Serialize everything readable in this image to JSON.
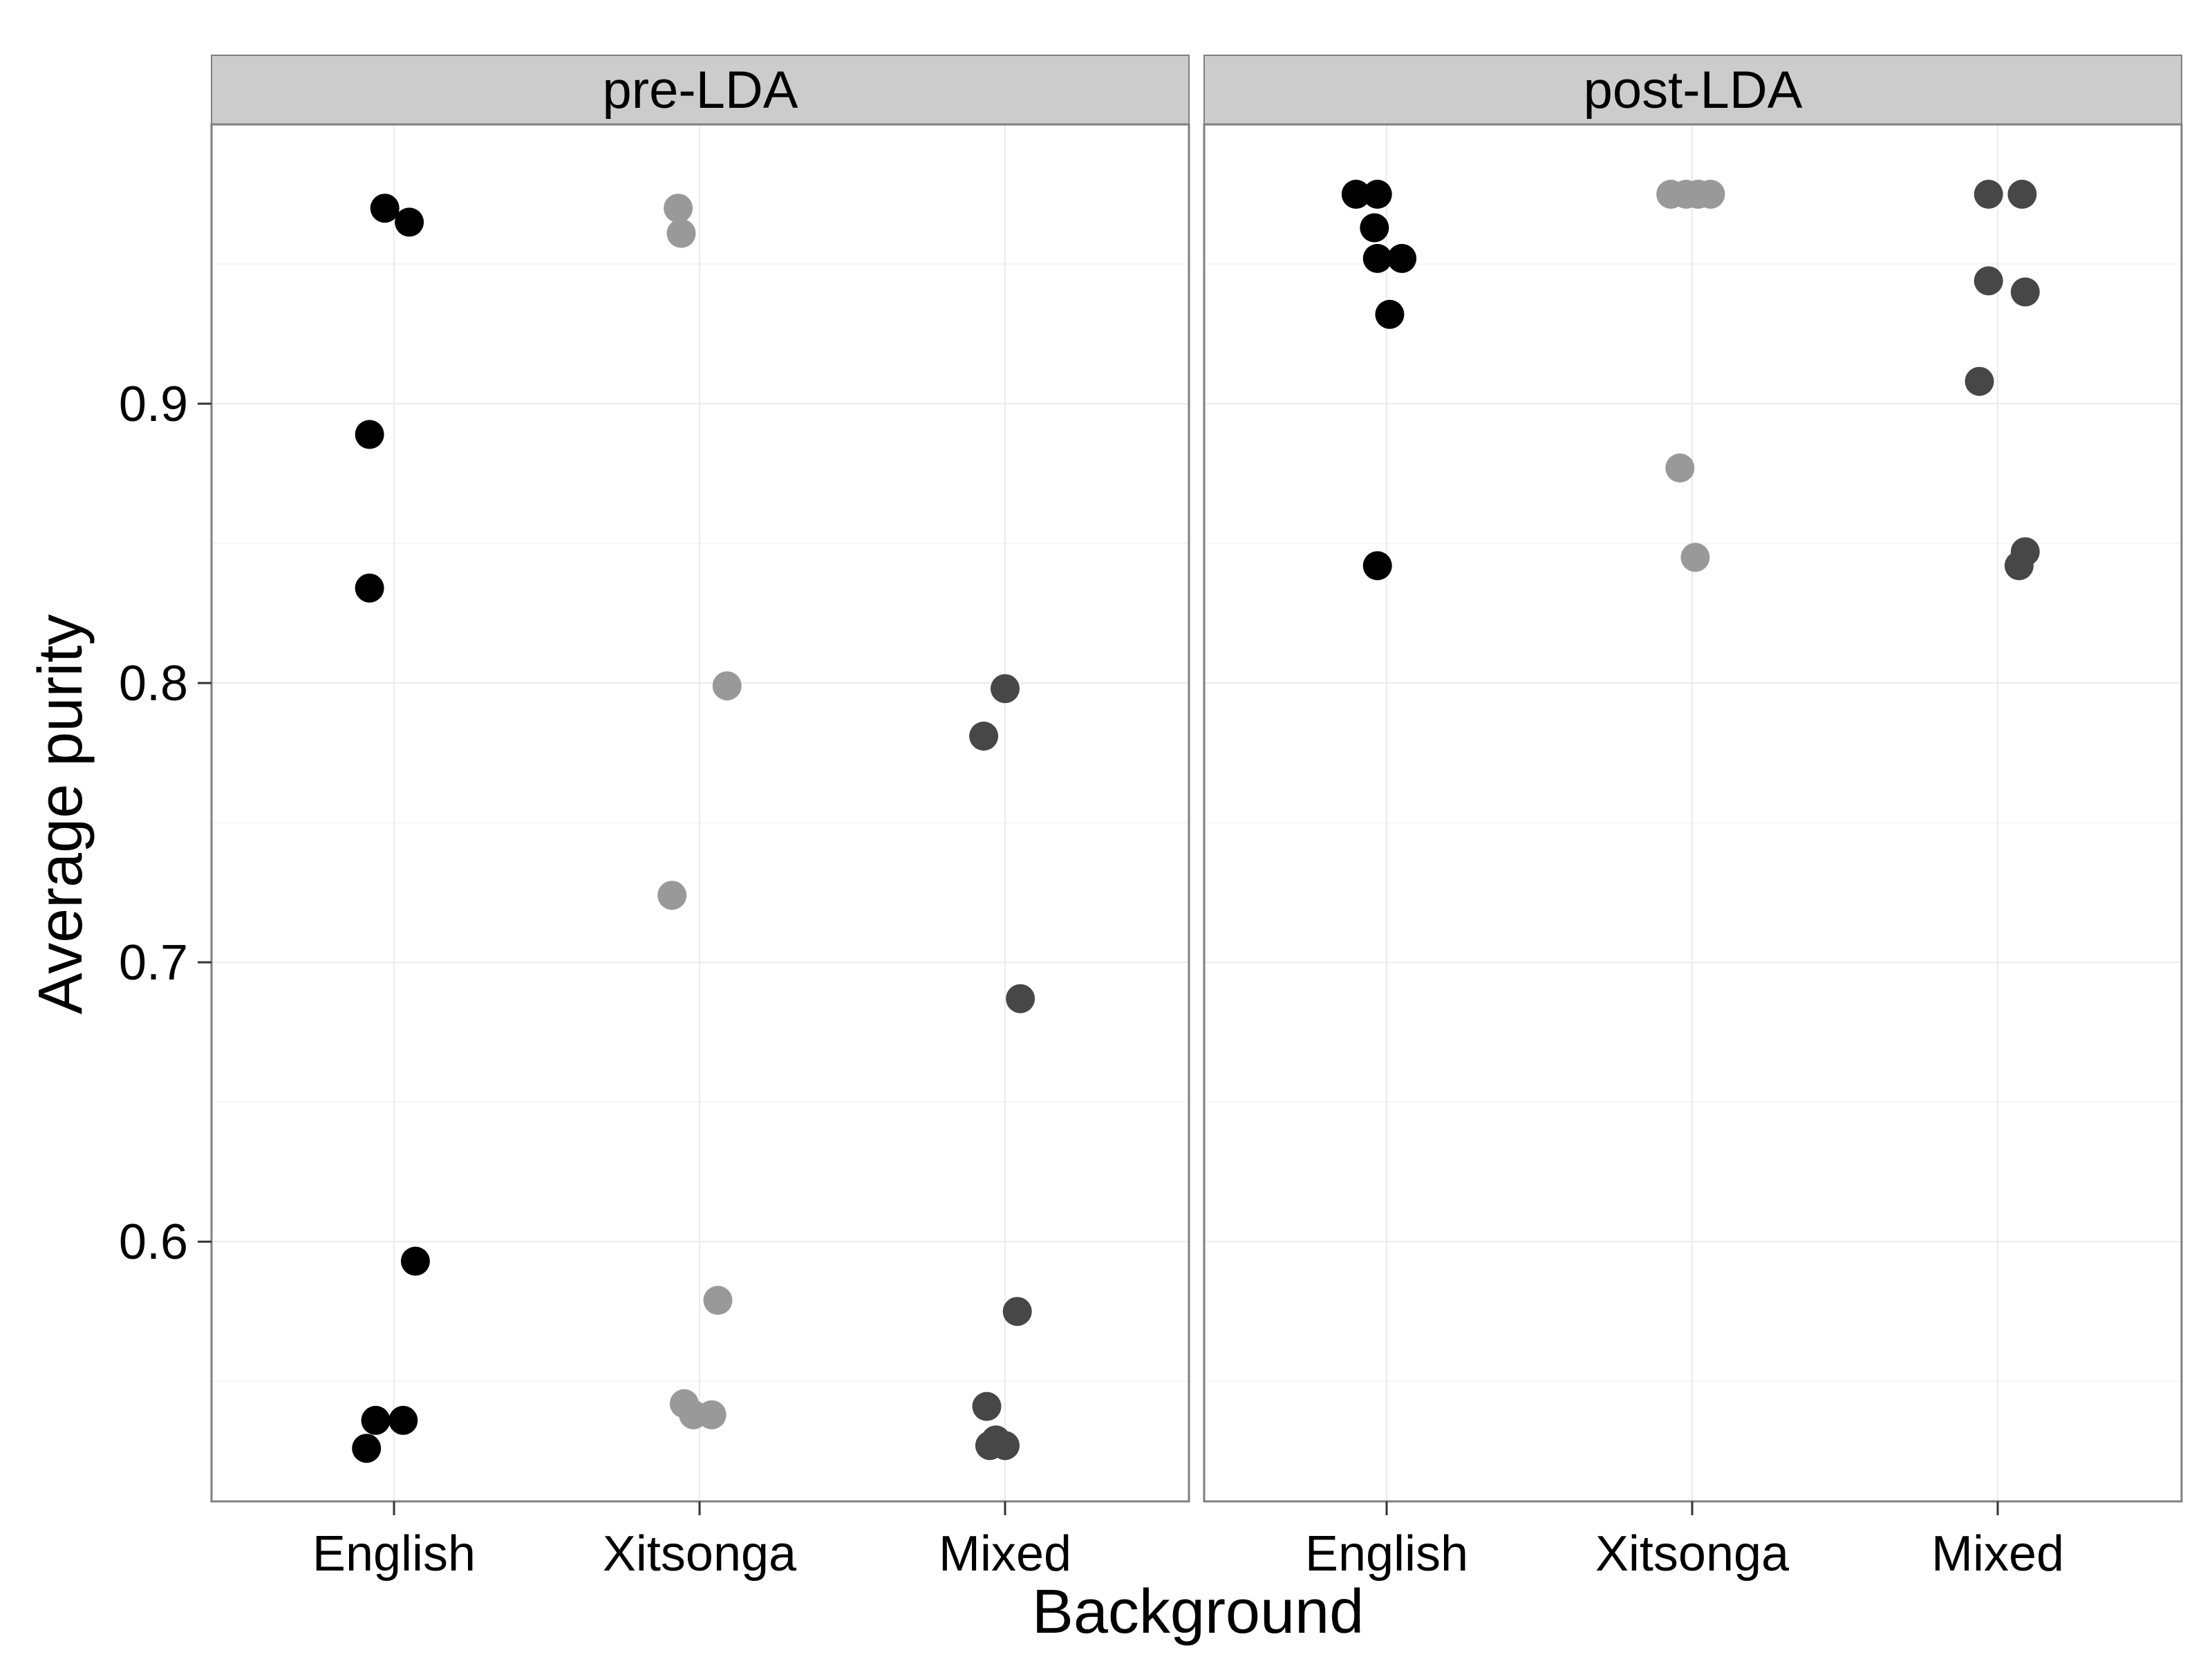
{
  "chart_data": {
    "type": "scatter",
    "xlabel": "Background",
    "ylabel": "Average purity",
    "categories": [
      "English",
      "Xitsonga",
      "Mixed"
    ],
    "ylim": [
      0.507,
      1.0
    ],
    "y_ticks": [
      0.6,
      0.7,
      0.8,
      0.9
    ],
    "y_tick_labels": [
      "0.6",
      "0.7",
      "0.8",
      "0.9"
    ],
    "grid": true,
    "legend": "none",
    "colors": {
      "English": "#000000",
      "Xitsonga": "#999999",
      "Mixed": "#474747",
      "strip": "#cccccc",
      "grid_major": "#ebebeb",
      "grid_minor": "#f5f5f5",
      "border": "#7f7f7f"
    },
    "panels": [
      {
        "label": "pre-LDA",
        "points": [
          {
            "category": "English",
            "jitter": -0.03,
            "y": 0.97
          },
          {
            "category": "English",
            "jitter": 0.05,
            "y": 0.965
          },
          {
            "category": "English",
            "jitter": -0.08,
            "y": 0.889
          },
          {
            "category": "English",
            "jitter": -0.08,
            "y": 0.834
          },
          {
            "category": "English",
            "jitter": 0.07,
            "y": 0.593
          },
          {
            "category": "English",
            "jitter": -0.06,
            "y": 0.536
          },
          {
            "category": "English",
            "jitter": 0.03,
            "y": 0.536
          },
          {
            "category": "English",
            "jitter": -0.09,
            "y": 0.526
          },
          {
            "category": "Xitsonga",
            "jitter": -0.07,
            "y": 0.97
          },
          {
            "category": "Xitsonga",
            "jitter": -0.06,
            "y": 0.961
          },
          {
            "category": "Xitsonga",
            "jitter": 0.09,
            "y": 0.799
          },
          {
            "category": "Xitsonga",
            "jitter": -0.09,
            "y": 0.724
          },
          {
            "category": "Xitsonga",
            "jitter": 0.06,
            "y": 0.579
          },
          {
            "category": "Xitsonga",
            "jitter": -0.05,
            "y": 0.542
          },
          {
            "category": "Xitsonga",
            "jitter": -0.02,
            "y": 0.538
          },
          {
            "category": "Xitsonga",
            "jitter": 0.04,
            "y": 0.538
          },
          {
            "category": "Mixed",
            "jitter": 0.0,
            "y": 0.798
          },
          {
            "category": "Mixed",
            "jitter": -0.07,
            "y": 0.781
          },
          {
            "category": "Mixed",
            "jitter": 0.05,
            "y": 0.687
          },
          {
            "category": "Mixed",
            "jitter": 0.04,
            "y": 0.575
          },
          {
            "category": "Mixed",
            "jitter": -0.06,
            "y": 0.541
          },
          {
            "category": "Mixed",
            "jitter": -0.03,
            "y": 0.529
          },
          {
            "category": "Mixed",
            "jitter": 0.0,
            "y": 0.527
          },
          {
            "category": "Mixed",
            "jitter": -0.05,
            "y": 0.527
          }
        ]
      },
      {
        "label": "post-LDA",
        "points": [
          {
            "category": "English",
            "jitter": -0.1,
            "y": 0.975
          },
          {
            "category": "English",
            "jitter": -0.03,
            "y": 0.975
          },
          {
            "category": "English",
            "jitter": -0.04,
            "y": 0.963
          },
          {
            "category": "English",
            "jitter": -0.03,
            "y": 0.952
          },
          {
            "category": "English",
            "jitter": 0.05,
            "y": 0.952
          },
          {
            "category": "English",
            "jitter": 0.01,
            "y": 0.932
          },
          {
            "category": "English",
            "jitter": -0.03,
            "y": 0.842
          },
          {
            "category": "Xitsonga",
            "jitter": -0.07,
            "y": 0.975
          },
          {
            "category": "Xitsonga",
            "jitter": -0.02,
            "y": 0.975
          },
          {
            "category": "Xitsonga",
            "jitter": 0.02,
            "y": 0.975
          },
          {
            "category": "Xitsonga",
            "jitter": 0.06,
            "y": 0.975
          },
          {
            "category": "Xitsonga",
            "jitter": -0.04,
            "y": 0.877
          },
          {
            "category": "Xitsonga",
            "jitter": 0.01,
            "y": 0.845
          },
          {
            "category": "Mixed",
            "jitter": -0.03,
            "y": 0.975
          },
          {
            "category": "Mixed",
            "jitter": 0.08,
            "y": 0.975
          },
          {
            "category": "Mixed",
            "jitter": -0.03,
            "y": 0.944
          },
          {
            "category": "Mixed",
            "jitter": 0.09,
            "y": 0.94
          },
          {
            "category": "Mixed",
            "jitter": -0.06,
            "y": 0.908
          },
          {
            "category": "Mixed",
            "jitter": 0.09,
            "y": 0.847
          },
          {
            "category": "Mixed",
            "jitter": 0.07,
            "y": 0.842
          }
        ]
      }
    ]
  }
}
